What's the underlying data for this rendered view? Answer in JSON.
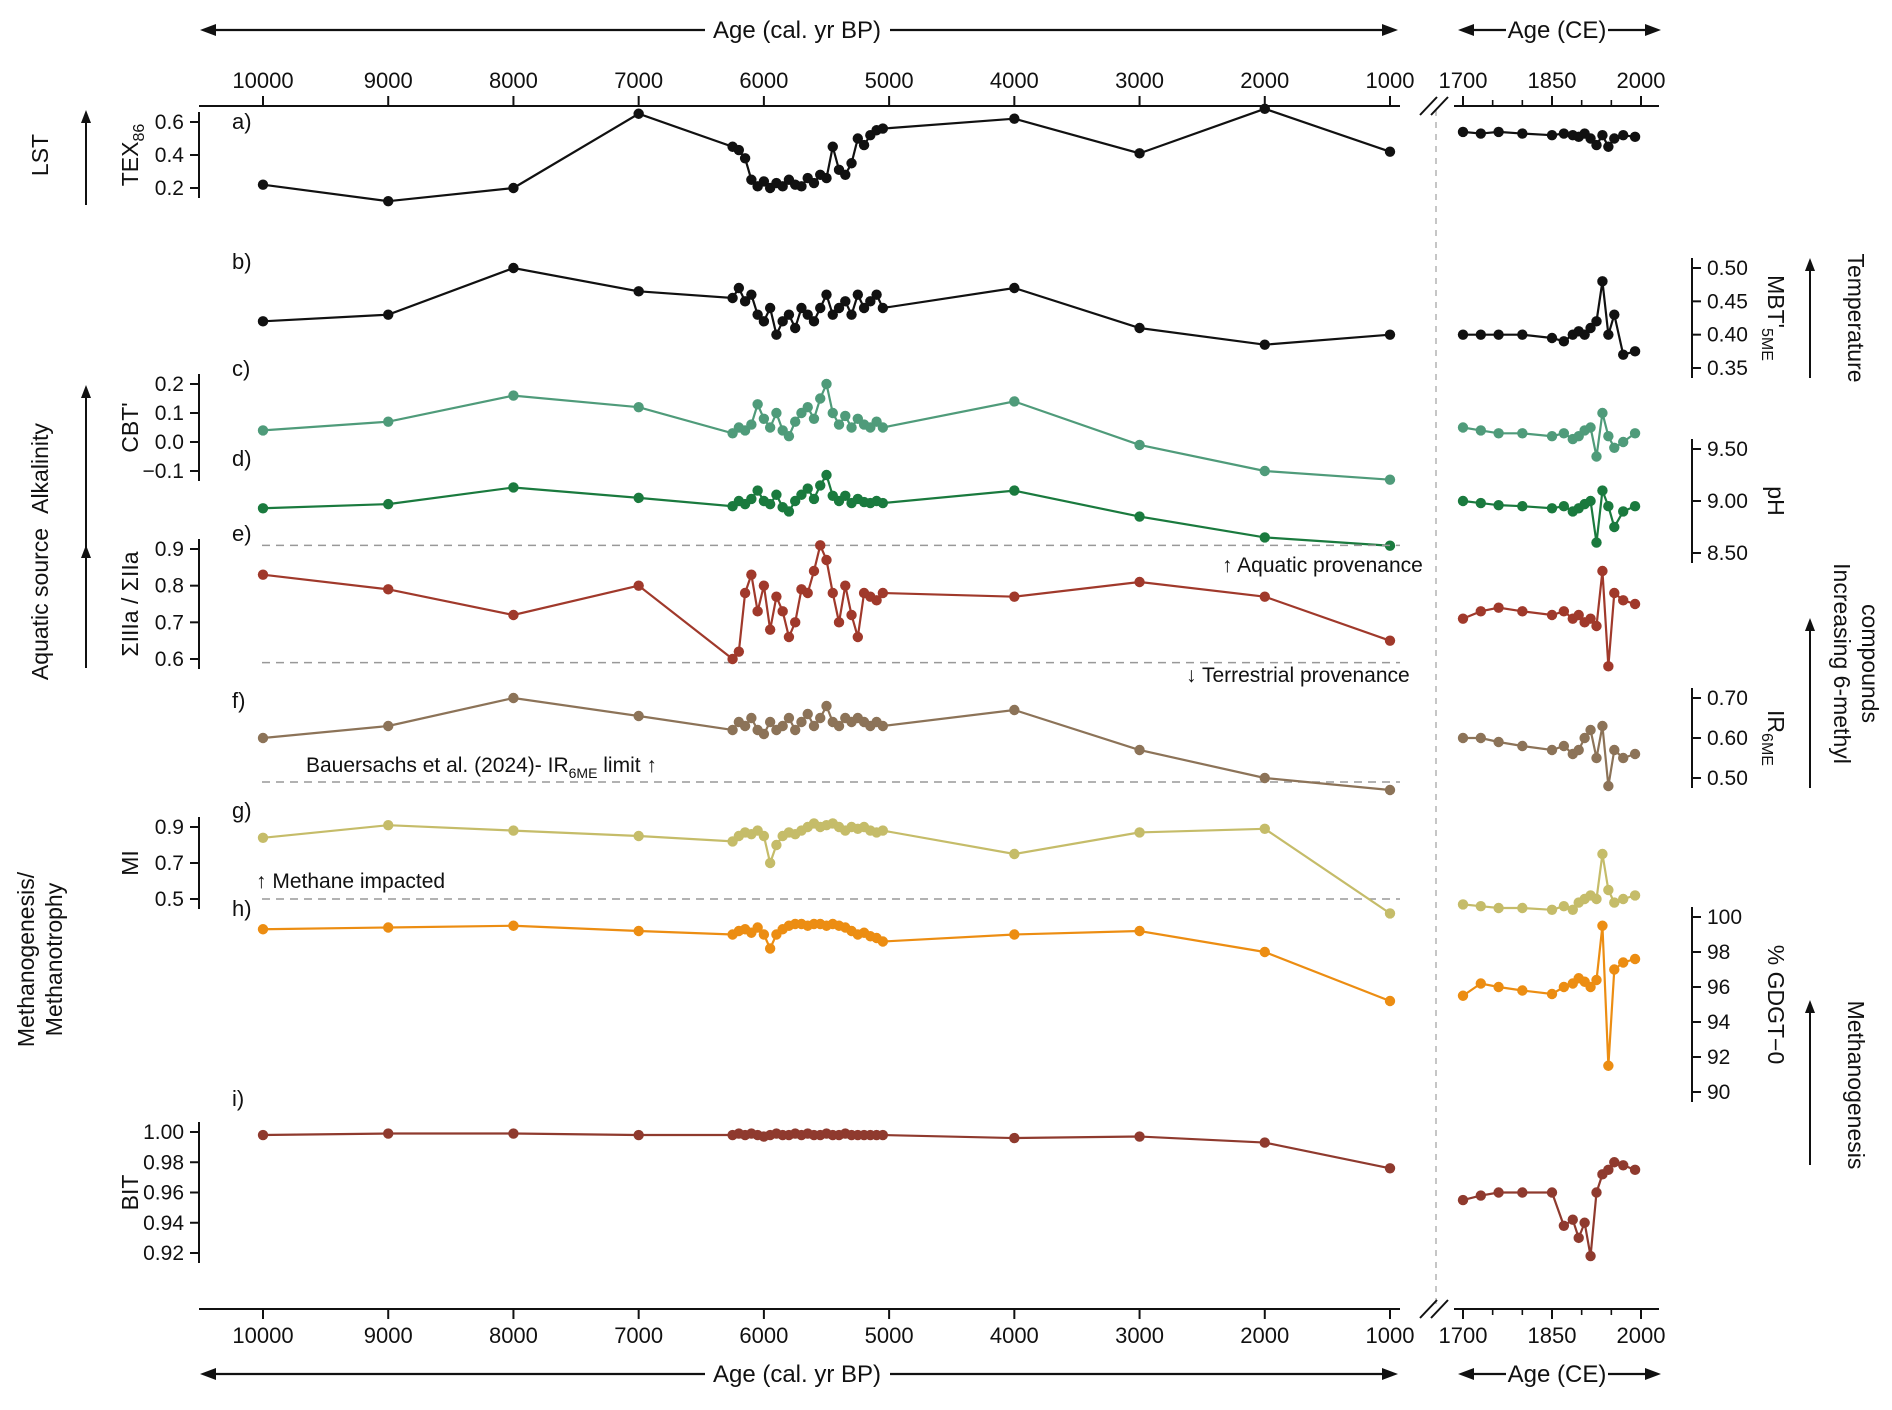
{
  "figure": {
    "background": "#ffffff",
    "axis_color": "#111111",
    "dashed_guide_color": "#999999",
    "separator": "dashed-vertical"
  },
  "x_axis": {
    "title": "Age (cal. yr BP)",
    "tick_labels": [
      "10000",
      "9000",
      "8000",
      "7000",
      "6000",
      "5000",
      "4000",
      "3000",
      "2000",
      "1000"
    ],
    "tick_values": [
      10000,
      9000,
      8000,
      7000,
      6000,
      5000,
      4000,
      3000,
      2000,
      1000
    ]
  },
  "ce_axis": {
    "title": "Age (CE)",
    "tick_labels": [
      "1700",
      "1850",
      "2000"
    ],
    "tick_values": [
      1700,
      1850,
      2000
    ],
    "minor_tick_values": [
      1750,
      1800,
      1900,
      1950
    ]
  },
  "annotations": [
    {
      "id": "aquatic-provenance",
      "parts": [
        {
          "t": "↑ Aquatic provenance"
        }
      ]
    },
    {
      "id": "terrestrial-provenance",
      "parts": [
        {
          "t": "↓ Terrestrial provenance"
        }
      ]
    },
    {
      "id": "ir6me-limit",
      "parts": [
        {
          "t": "Bauersachs et al. (2024)- IR"
        },
        {
          "t": "6ME",
          "sub": true
        },
        {
          "t": " limit ↑"
        }
      ]
    },
    {
      "id": "methane-impacted",
      "parts": [
        {
          "t": "↑ Methane impacted"
        }
      ]
    }
  ],
  "group_labels": [
    {
      "id": "lst",
      "side": "left",
      "span": [
        "a"
      ],
      "lines": [
        [
          {
            "t": "LST"
          }
        ]
      ]
    },
    {
      "id": "alkalinity",
      "side": "left",
      "span": [
        "c",
        "d"
      ],
      "lines": [
        [
          {
            "t": "Alkalinity"
          }
        ]
      ]
    },
    {
      "id": "aquatic-source",
      "side": "left",
      "span": [
        "e"
      ],
      "lines": [
        [
          {
            "t": "Aquatic source"
          }
        ]
      ]
    },
    {
      "id": "methanogenesis-methanotrophy",
      "side": "left",
      "span": [
        "g",
        "h"
      ],
      "lines": [
        [
          {
            "t": "Methanogenesis/"
          }
        ],
        [
          {
            "t": "Methanotrophy"
          }
        ]
      ]
    },
    {
      "id": "temperature",
      "side": "right",
      "span": [
        "b"
      ],
      "lines": [
        [
          {
            "t": "Temperature"
          }
        ]
      ]
    },
    {
      "id": "increasing-6-methyl",
      "side": "right",
      "span": [
        "e",
        "f"
      ],
      "lines": [
        [
          {
            "t": "Increasing 6-methyl"
          }
        ],
        [
          {
            "t": "compounds"
          }
        ]
      ]
    },
    {
      "id": "methanogenesis",
      "side": "right",
      "span": [
        "h",
        "i"
      ],
      "lines": [
        [
          {
            "t": "Methanogenesis"
          }
        ]
      ]
    }
  ],
  "chart_data": {
    "type": "line",
    "x_bp": [
      10000,
      9000,
      8000,
      7000,
      6250,
      6200,
      6150,
      6100,
      6050,
      6000,
      5950,
      5900,
      5850,
      5800,
      5750,
      5700,
      5650,
      5600,
      5550,
      5500,
      5450,
      5400,
      5350,
      5300,
      5250,
      5200,
      5150,
      5100,
      5050,
      4000,
      3000,
      2000,
      1000
    ],
    "x_ce": [
      1700,
      1730,
      1760,
      1800,
      1850,
      1870,
      1885,
      1895,
      1905,
      1915,
      1925,
      1935,
      1945,
      1955,
      1970,
      1990
    ],
    "panels": [
      {
        "id": "a",
        "letter": "a)",
        "proxy": "TEX86",
        "axis_side": "left",
        "color": "#111111",
        "axis_label_parts": [
          {
            "t": "TEX"
          },
          {
            "t": "86",
            "sub": true
          }
        ],
        "ticks": [
          {
            "v": 0.6,
            "t": "0.6"
          },
          {
            "v": 0.4,
            "t": "0.4"
          },
          {
            "v": 0.2,
            "t": "0.2"
          }
        ],
        "dashed": [],
        "y_bp": [
          0.22,
          0.12,
          0.2,
          0.65,
          0.45,
          0.43,
          0.38,
          0.25,
          0.21,
          0.24,
          0.2,
          0.23,
          0.21,
          0.25,
          0.22,
          0.21,
          0.26,
          0.23,
          0.28,
          0.26,
          0.45,
          0.31,
          0.28,
          0.35,
          0.5,
          0.46,
          0.52,
          0.55,
          0.56,
          0.62,
          0.41,
          0.68,
          0.42
        ],
        "y_ce": [
          0.54,
          0.53,
          0.54,
          0.53,
          0.52,
          0.53,
          0.52,
          0.51,
          0.53,
          0.5,
          0.46,
          0.52,
          0.45,
          0.5,
          0.52,
          0.51
        ]
      },
      {
        "id": "b",
        "letter": "b)",
        "proxy": "MBT'5ME",
        "axis_side": "right",
        "color": "#111111",
        "axis_label_parts": [
          {
            "t": "MBT'"
          },
          {
            "t": "5ME",
            "sub": true
          }
        ],
        "ticks": [
          {
            "v": 0.5,
            "t": "0.50"
          },
          {
            "v": 0.45,
            "t": "0.45"
          },
          {
            "v": 0.4,
            "t": "0.40"
          },
          {
            "v": 0.35,
            "t": "0.35"
          }
        ],
        "dashed": [],
        "y_bp": [
          0.42,
          0.43,
          0.5,
          0.465,
          0.455,
          0.47,
          0.45,
          0.46,
          0.43,
          0.42,
          0.44,
          0.4,
          0.42,
          0.43,
          0.41,
          0.44,
          0.43,
          0.42,
          0.44,
          0.46,
          0.43,
          0.44,
          0.45,
          0.43,
          0.46,
          0.44,
          0.45,
          0.46,
          0.44,
          0.47,
          0.41,
          0.385,
          0.4
        ],
        "y_ce": [
          0.4,
          0.4,
          0.4,
          0.4,
          0.395,
          0.39,
          0.4,
          0.405,
          0.4,
          0.41,
          0.42,
          0.48,
          0.4,
          0.43,
          0.37,
          0.375
        ]
      },
      {
        "id": "c",
        "letter": "c)",
        "proxy": "CBT'",
        "axis_side": "left",
        "color": "#4f9b7a",
        "axis_label_parts": [
          {
            "t": "CBT'"
          }
        ],
        "ticks": [
          {
            "v": 0.2,
            "t": "0.2"
          },
          {
            "v": 0.1,
            "t": "0.1"
          },
          {
            "v": 0.0,
            "t": "0.0"
          },
          {
            "v": -0.1,
            "t": "−0.1"
          }
        ],
        "dashed": [],
        "y_bp": [
          0.04,
          0.07,
          0.16,
          0.12,
          0.03,
          0.05,
          0.04,
          0.06,
          0.13,
          0.08,
          0.05,
          0.1,
          0.04,
          0.02,
          0.07,
          0.1,
          0.12,
          0.08,
          0.15,
          0.2,
          0.1,
          0.06,
          0.09,
          0.05,
          0.08,
          0.06,
          0.05,
          0.07,
          0.05,
          0.14,
          -0.01,
          -0.1,
          -0.13
        ],
        "y_ce": [
          0.05,
          0.04,
          0.03,
          0.03,
          0.02,
          0.03,
          0.01,
          0.02,
          0.04,
          0.05,
          -0.05,
          0.1,
          0.02,
          -0.02,
          0.0,
          0.03
        ]
      },
      {
        "id": "d",
        "letter": "d)",
        "proxy": "pH",
        "axis_side": "right",
        "color": "#1a7a3e",
        "axis_label_parts": [
          {
            "t": "pH"
          }
        ],
        "ticks": [
          {
            "v": 9.5,
            "t": "9.50"
          },
          {
            "v": 9.0,
            "t": "9.00"
          },
          {
            "v": 8.5,
            "t": "8.50"
          }
        ],
        "dashed": [],
        "y_bp": [
          8.93,
          8.97,
          9.13,
          9.03,
          8.95,
          9.0,
          8.97,
          9.02,
          9.1,
          9.0,
          8.97,
          9.06,
          8.94,
          8.9,
          9.0,
          9.06,
          9.12,
          9.02,
          9.15,
          9.25,
          9.05,
          9.0,
          9.05,
          8.98,
          9.02,
          8.99,
          8.98,
          9.0,
          8.98,
          9.1,
          8.85,
          8.65,
          8.57
        ],
        "y_ce": [
          9.0,
          8.98,
          8.96,
          8.95,
          8.93,
          8.95,
          8.9,
          8.93,
          8.97,
          9.0,
          8.6,
          9.1,
          8.95,
          8.75,
          8.9,
          8.95
        ]
      },
      {
        "id": "e",
        "letter": "e)",
        "proxy": "ΣIIIa / ΣIIa",
        "axis_side": "left",
        "color": "#a0392b",
        "axis_label_parts": [
          {
            "t": "ΣIIIa / ΣIIa"
          }
        ],
        "ticks": [
          {
            "v": 0.9,
            "t": "0.9"
          },
          {
            "v": 0.8,
            "t": "0.8"
          },
          {
            "v": 0.7,
            "t": "0.7"
          },
          {
            "v": 0.6,
            "t": "0.6"
          }
        ],
        "dashed": [
          0.91,
          0.59
        ],
        "y_bp": [
          0.83,
          0.79,
          0.72,
          0.8,
          0.6,
          0.62,
          0.78,
          0.83,
          0.73,
          0.8,
          0.68,
          0.77,
          0.73,
          0.66,
          0.7,
          0.79,
          0.78,
          0.84,
          0.91,
          0.87,
          0.78,
          0.7,
          0.8,
          0.72,
          0.66,
          0.78,
          0.77,
          0.76,
          0.78,
          0.77,
          0.81,
          0.77,
          0.65
        ],
        "y_ce": [
          0.71,
          0.73,
          0.74,
          0.73,
          0.72,
          0.73,
          0.71,
          0.72,
          0.7,
          0.71,
          0.69,
          0.84,
          0.58,
          0.78,
          0.76,
          0.75
        ]
      },
      {
        "id": "f",
        "letter": "f)",
        "proxy": "IR6ME",
        "axis_side": "right",
        "color": "#8c7358",
        "axis_label_parts": [
          {
            "t": "IR"
          },
          {
            "t": "6ME",
            "sub": true
          }
        ],
        "ticks": [
          {
            "v": 0.7,
            "t": "0.70"
          },
          {
            "v": 0.6,
            "t": "0.60"
          },
          {
            "v": 0.5,
            "t": "0.50"
          }
        ],
        "dashed": [
          0.49
        ],
        "y_bp": [
          0.6,
          0.63,
          0.7,
          0.655,
          0.62,
          0.64,
          0.63,
          0.65,
          0.62,
          0.61,
          0.64,
          0.62,
          0.63,
          0.65,
          0.62,
          0.64,
          0.66,
          0.63,
          0.65,
          0.68,
          0.64,
          0.63,
          0.65,
          0.64,
          0.65,
          0.64,
          0.63,
          0.64,
          0.63,
          0.67,
          0.57,
          0.5,
          0.47
        ],
        "y_ce": [
          0.6,
          0.6,
          0.59,
          0.58,
          0.57,
          0.58,
          0.56,
          0.57,
          0.6,
          0.62,
          0.55,
          0.63,
          0.48,
          0.57,
          0.55,
          0.56
        ]
      },
      {
        "id": "g",
        "letter": "g)",
        "proxy": "MI",
        "axis_side": "left",
        "color": "#c5bc69",
        "axis_label_parts": [
          {
            "t": "MI"
          }
        ],
        "ticks": [
          {
            "v": 0.9,
            "t": "0.9"
          },
          {
            "v": 0.7,
            "t": "0.7"
          },
          {
            "v": 0.5,
            "t": "0.5"
          }
        ],
        "dashed": [
          0.5
        ],
        "y_bp": [
          0.84,
          0.91,
          0.88,
          0.85,
          0.82,
          0.85,
          0.87,
          0.86,
          0.88,
          0.85,
          0.7,
          0.8,
          0.85,
          0.87,
          0.86,
          0.88,
          0.9,
          0.92,
          0.9,
          0.91,
          0.92,
          0.9,
          0.88,
          0.9,
          0.89,
          0.9,
          0.88,
          0.87,
          0.88,
          0.75,
          0.87,
          0.89,
          0.42
        ],
        "y_ce": [
          0.47,
          0.46,
          0.45,
          0.45,
          0.44,
          0.46,
          0.44,
          0.48,
          0.5,
          0.52,
          0.5,
          0.75,
          0.55,
          0.48,
          0.5,
          0.52
        ]
      },
      {
        "id": "h",
        "letter": "h)",
        "proxy": "% GDGT-0",
        "axis_side": "right",
        "color": "#ec8d12",
        "axis_label_parts": [
          {
            "t": "% GDGT−0"
          }
        ],
        "ticks": [
          {
            "v": 100,
            "t": "100"
          },
          {
            "v": 98,
            "t": "98"
          },
          {
            "v": 96,
            "t": "96"
          },
          {
            "v": 94,
            "t": "94"
          },
          {
            "v": 92,
            "t": "92"
          },
          {
            "v": 90,
            "t": "90"
          }
        ],
        "dashed": [],
        "y_bp": [
          99.3,
          99.4,
          99.5,
          99.2,
          99.0,
          99.2,
          99.3,
          99.1,
          99.4,
          99.0,
          98.2,
          99.0,
          99.3,
          99.5,
          99.6,
          99.6,
          99.5,
          99.6,
          99.6,
          99.5,
          99.6,
          99.5,
          99.4,
          99.2,
          99.0,
          99.1,
          98.9,
          98.8,
          98.6,
          99.0,
          99.2,
          98.0,
          95.2
        ],
        "y_ce": [
          95.5,
          96.2,
          96.0,
          95.8,
          95.6,
          96.0,
          96.2,
          96.5,
          96.3,
          96.0,
          96.4,
          99.5,
          91.5,
          97.0,
          97.4,
          97.6
        ]
      },
      {
        "id": "i",
        "letter": "i)",
        "proxy": "BIT",
        "axis_side": "left",
        "color": "#8f3a2e",
        "axis_label_parts": [
          {
            "t": "BIT"
          }
        ],
        "ticks": [
          {
            "v": 1.0,
            "t": "1.00"
          },
          {
            "v": 0.98,
            "t": "0.98"
          },
          {
            "v": 0.96,
            "t": "0.96"
          },
          {
            "v": 0.94,
            "t": "0.94"
          },
          {
            "v": 0.92,
            "t": "0.92"
          }
        ],
        "dashed": [],
        "y_bp": [
          0.998,
          0.999,
          0.999,
          0.998,
          0.998,
          0.999,
          0.998,
          0.999,
          0.998,
          0.997,
          0.998,
          0.999,
          0.998,
          0.998,
          0.999,
          0.998,
          0.999,
          0.998,
          0.998,
          0.999,
          0.998,
          0.998,
          0.999,
          0.998,
          0.998,
          0.998,
          0.998,
          0.998,
          0.998,
          0.996,
          0.997,
          0.993,
          0.976
        ],
        "y_ce": [
          0.955,
          0.958,
          0.96,
          0.96,
          0.96,
          0.938,
          0.942,
          0.93,
          0.94,
          0.918,
          0.96,
          0.972,
          0.975,
          0.98,
          0.978,
          0.975
        ]
      }
    ]
  }
}
